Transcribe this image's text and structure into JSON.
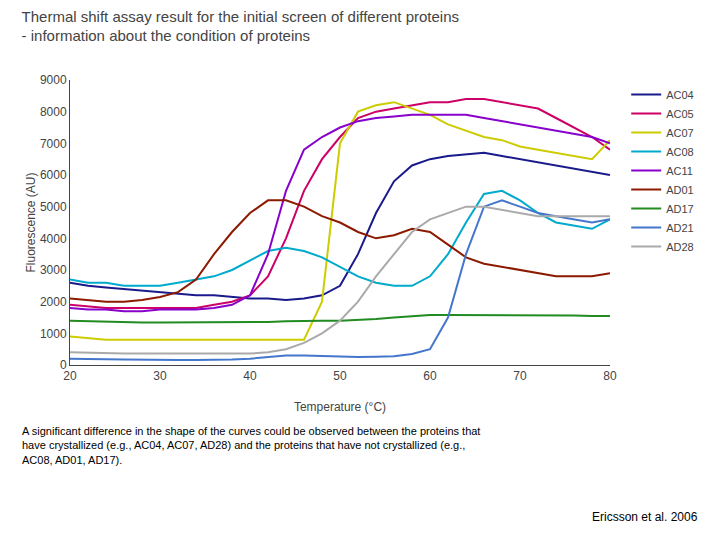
{
  "chart_data": {
    "type": "line",
    "title": "Thermal shift assay result for the initial screen of different proteins",
    "subtitle": "- information about the condition of proteins",
    "x_label": "Temperature (°C)",
    "y_label": "Fluorescence (AU)",
    "x": [
      20,
      22,
      24,
      26,
      28,
      30,
      32,
      34,
      36,
      38,
      40,
      42,
      44,
      46,
      48,
      50,
      52,
      54,
      56,
      58,
      60,
      62,
      64,
      66,
      68,
      70,
      72,
      74,
      76,
      78,
      80
    ],
    "xlim": [
      20,
      80
    ],
    "xticks": [
      20,
      30,
      40,
      50,
      60,
      70,
      80
    ],
    "ylim": [
      0,
      9000
    ],
    "yticks": [
      0,
      1000,
      2000,
      3000,
      4000,
      5000,
      6000,
      7000,
      8000,
      9000
    ],
    "grid": false,
    "legend": "right",
    "annotations": [
      "A significant difference in the shape of the curves could be observed between the proteins that\nhave crystallized (e.g., AC04, AC07, AD28) and the proteins that have not crystallized (e.g.,\nAC08, AD01, AD17).",
      "Ericsson et al. 2006"
    ],
    "series": [
      {
        "name": "AC04",
        "color": "#1a1a8c",
        "values": [
          2600,
          2500,
          2450,
          2400,
          2350,
          2300,
          2250,
          2200,
          2200,
          2150,
          2100,
          2100,
          2050,
          2100,
          2200,
          2500,
          3500,
          4800,
          5800,
          6300,
          6500,
          6600,
          6650,
          6700,
          6600,
          6500,
          6400,
          6300,
          6200,
          6100,
          6000
        ]
      },
      {
        "name": "AC05",
        "color": "#cc0066",
        "values": [
          1900,
          1850,
          1800,
          1800,
          1800,
          1800,
          1800,
          1800,
          1900,
          2000,
          2200,
          2800,
          4000,
          5500,
          6500,
          7200,
          7800,
          8000,
          8100,
          8200,
          8300,
          8300,
          8400,
          8400,
          8300,
          8200,
          8100,
          7800,
          7500,
          7200,
          6800
        ]
      },
      {
        "name": "AC07",
        "color": "#cccc00",
        "values": [
          900,
          850,
          800,
          800,
          800,
          800,
          800,
          800,
          800,
          800,
          800,
          800,
          800,
          800,
          2000,
          7000,
          8000,
          8200,
          8300,
          8100,
          7900,
          7600,
          7400,
          7200,
          7100,
          6900,
          6800,
          6700,
          6600,
          6500,
          7100
        ]
      },
      {
        "name": "AC08",
        "color": "#00aacc",
        "values": [
          2700,
          2600,
          2600,
          2500,
          2500,
          2500,
          2600,
          2700,
          2800,
          3000,
          3300,
          3600,
          3700,
          3600,
          3400,
          3100,
          2800,
          2600,
          2500,
          2500,
          2800,
          3500,
          4500,
          5400,
          5500,
          5200,
          4800,
          4500,
          4400,
          4300,
          4600
        ]
      },
      {
        "name": "AC11",
        "color": "#8800cc",
        "values": [
          1800,
          1750,
          1750,
          1700,
          1700,
          1750,
          1750,
          1750,
          1800,
          1900,
          2200,
          3500,
          5500,
          6800,
          7200,
          7500,
          7700,
          7800,
          7850,
          7900,
          7900,
          7900,
          7900,
          7800,
          7700,
          7600,
          7500,
          7400,
          7300,
          7200,
          7000
        ]
      },
      {
        "name": "AD01",
        "color": "#8b1a00",
        "values": [
          2100,
          2050,
          2000,
          2000,
          2050,
          2150,
          2300,
          2700,
          3500,
          4200,
          4800,
          5200,
          5200,
          5000,
          4700,
          4500,
          4200,
          4000,
          4100,
          4300,
          4200,
          3800,
          3400,
          3200,
          3100,
          3000,
          2900,
          2800,
          2800,
          2800,
          2900
        ]
      },
      {
        "name": "AD17",
        "color": "#228B22",
        "values": [
          1400,
          1380,
          1360,
          1350,
          1340,
          1340,
          1340,
          1340,
          1340,
          1340,
          1340,
          1360,
          1380,
          1400,
          1400,
          1400,
          1420,
          1450,
          1500,
          1550,
          1580,
          1580,
          1580,
          1580,
          1580,
          1580,
          1580,
          1570,
          1560,
          1550,
          1550
        ]
      },
      {
        "name": "AD21",
        "color": "#4477cc",
        "values": [
          200,
          200,
          180,
          170,
          160,
          160,
          160,
          160,
          160,
          170,
          200,
          250,
          300,
          300,
          280,
          260,
          250,
          260,
          280,
          350,
          500,
          1500,
          3500,
          5000,
          5200,
          5000,
          4800,
          4700,
          4600,
          4500,
          4600
        ]
      },
      {
        "name": "AD28",
        "color": "#aaaaaa",
        "values": [
          400,
          380,
          360,
          360,
          360,
          360,
          360,
          360,
          360,
          360,
          360,
          400,
          500,
          700,
          1000,
          1400,
          2000,
          2800,
          3500,
          4200,
          4600,
          4800,
          5000,
          5000,
          4900,
          4800,
          4700,
          4700,
          4700,
          4700,
          4700
        ]
      }
    ]
  }
}
